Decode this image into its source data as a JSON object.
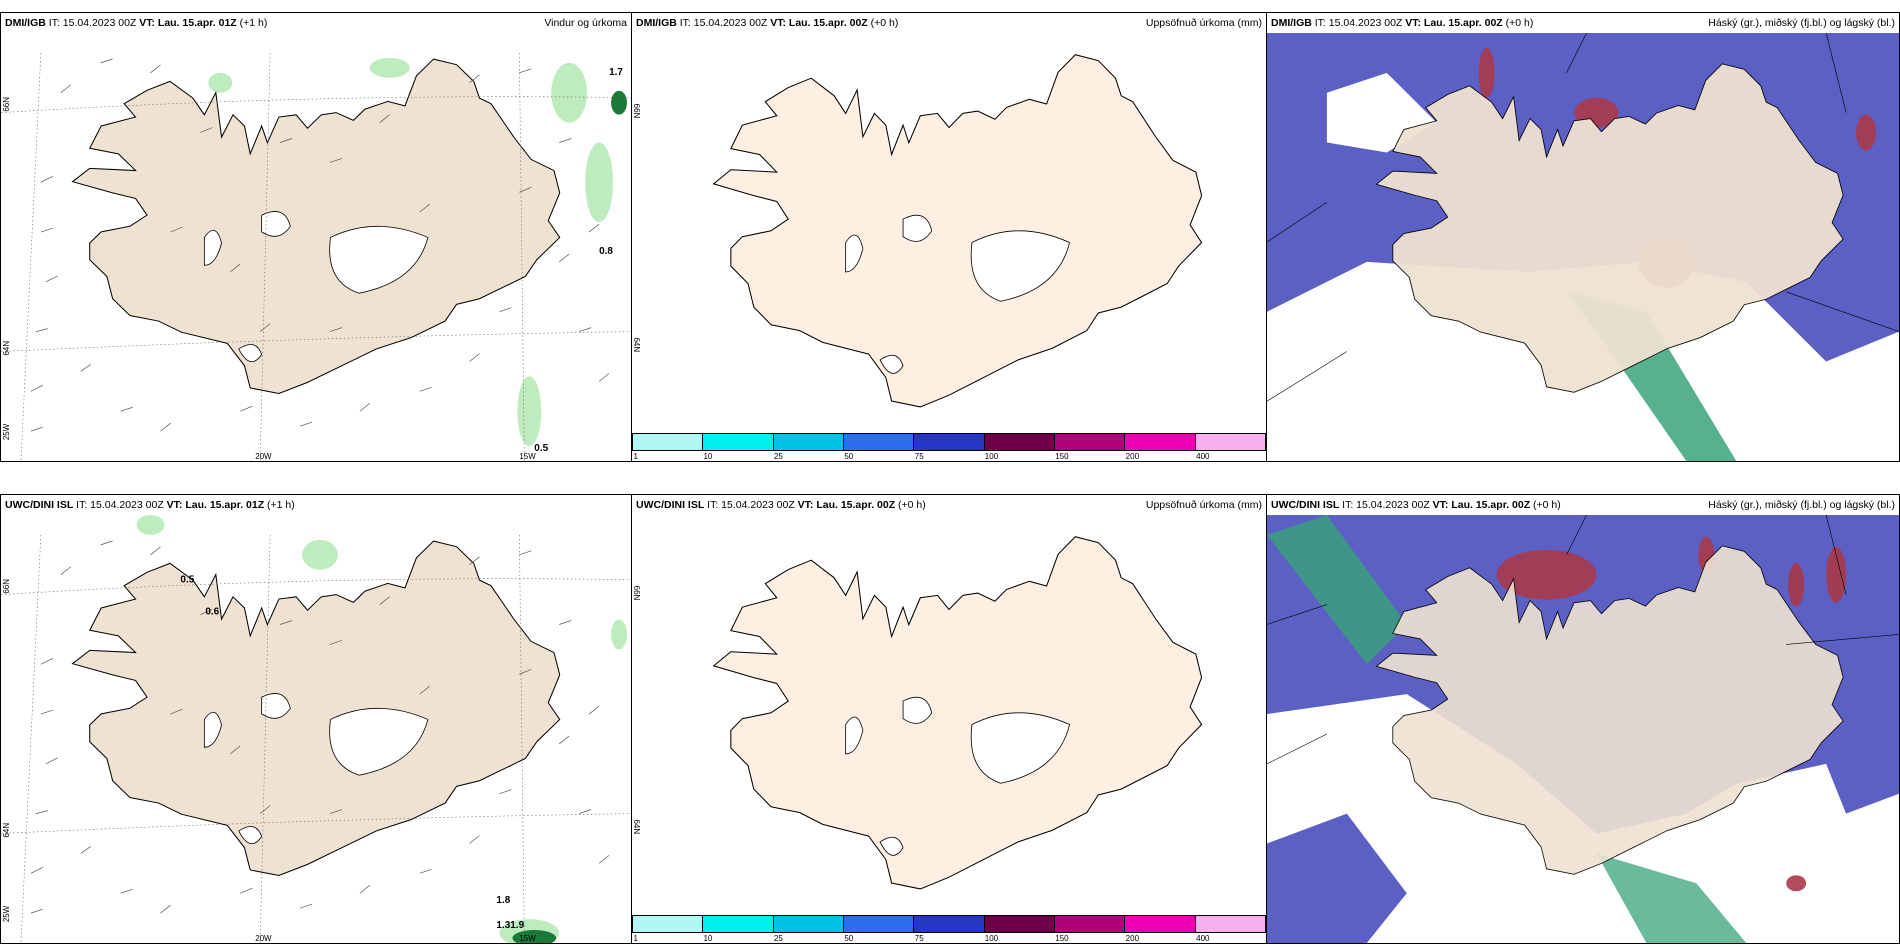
{
  "colors": {
    "land_wind": "#efe2d2",
    "land_precip": "#fdf0e3",
    "sea_cover": "#5c5fc4",
    "precip_green": "#a8e6a8"
  },
  "legend": {
    "ticks": [
      "1",
      "10",
      "25",
      "50",
      "75",
      "100",
      "150",
      "200",
      "400"
    ],
    "colors": [
      "#b3f7f5",
      "#00f0f0",
      "#00c3e8",
      "#2e6df0",
      "#2836c8",
      "#6e004a",
      "#b0007a",
      "#f000b4",
      "#f5b0f0"
    ]
  },
  "panels": [
    {
      "model": "DMI/IGB",
      "it": "IT: 15.04.2023 00Z",
      "vt": "VT: Lau. 15.apr. 01Z",
      "lead": "(+1 h)",
      "title": "Vindur og úrkoma",
      "axis": {
        "lat66": "66N",
        "lat64": "64N",
        "lon25": "25W",
        "lon20": "20W",
        "lon15": "15W"
      },
      "values": [
        "1.7",
        "0.8",
        "0.5"
      ]
    },
    {
      "model": "DMI/IGB",
      "it": "IT: 15.04.2023 00Z",
      "vt": "VT: Lau. 15.apr. 00Z",
      "lead": "(+0 h)",
      "title": "Uppsöfnuð úrkoma (mm)",
      "axis": {
        "lat66": "66N",
        "lat64": "64N"
      }
    },
    {
      "model": "DMI/IGB",
      "it": "IT: 15.04.2023 00Z",
      "vt": "VT: Lau. 15.apr. 00Z",
      "lead": "(+0 h)",
      "title": "Háský (gr.), miðský (fj.bl.) og lágský (bl.)"
    },
    {
      "model": "UWC/DINI ISL",
      "it": "IT: 15.04.2023 00Z",
      "vt": "VT: Lau. 15.apr. 01Z",
      "lead": "(+1 h)",
      "title": "",
      "axis": {
        "lat66": "66N",
        "lat64": "64N",
        "lon25": "25W",
        "lon20": "20W",
        "lon15": "15W"
      },
      "values": [
        "0.5",
        "0.6",
        "1.8",
        "1.31.9"
      ]
    },
    {
      "model": "UWC/DINI ISL",
      "it": "IT: 15.04.2023 00Z",
      "vt": "VT: Lau. 15.apr. 00Z",
      "lead": "(+0 h)",
      "title": "Uppsöfnuð úrkoma (mm)",
      "axis": {
        "lat66": "66N",
        "lat64": "64N"
      }
    },
    {
      "model": "UWC/DINI ISL",
      "it": "IT: 15.04.2023 00Z",
      "vt": "VT: Lau. 15.apr. 00Z",
      "lead": "(+0 h)",
      "title": "Háský (gr.), miðský (fj.bl.) og lágský (bl.)"
    }
  ]
}
